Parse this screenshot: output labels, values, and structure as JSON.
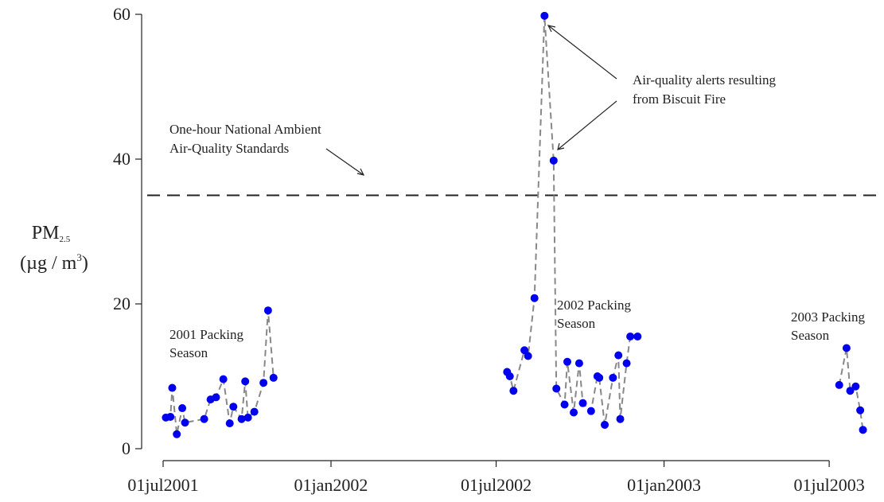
{
  "chart_data": {
    "type": "line",
    "ylabel": "PM2.5 (µg / m3)",
    "ylabel_parts": {
      "base": "PM",
      "subscript": "2.5",
      "unit_open": "(µg / m",
      "superscript": "3",
      "unit_close": ")"
    },
    "ylim": [
      0,
      60
    ],
    "yticks": [
      0,
      20,
      40,
      60
    ],
    "xlim": [
      "2001-06-01",
      "2003-08-15"
    ],
    "xticks": [
      {
        "date": "2001-07-01",
        "label": "01jul2001"
      },
      {
        "date": "2002-01-01",
        "label": "01jan2002"
      },
      {
        "date": "2002-07-01",
        "label": "01jul2002"
      },
      {
        "date": "2003-01-01",
        "label": "01jan2003"
      },
      {
        "date": "2003-07-01",
        "label": "01jul2003"
      }
    ],
    "grid": false,
    "marker_color": "#0000ee",
    "line_color": "#888888",
    "reference_line": {
      "y": 35,
      "color": "#222222",
      "style": "dashed"
    },
    "series": [
      {
        "segment": "2001",
        "points": [
          {
            "x": "2001-07-04",
            "y": 4.3
          },
          {
            "x": "2001-07-09",
            "y": 4.4
          },
          {
            "x": "2001-07-11",
            "y": 8.4
          },
          {
            "x": "2001-07-16",
            "y": 2.0
          },
          {
            "x": "2001-07-22",
            "y": 5.6
          },
          {
            "x": "2001-07-25",
            "y": 3.6
          },
          {
            "x": "2001-08-15",
            "y": 4.1
          },
          {
            "x": "2001-08-22",
            "y": 6.8
          },
          {
            "x": "2001-08-28",
            "y": 7.1
          },
          {
            "x": "2001-09-05",
            "y": 9.6
          },
          {
            "x": "2001-09-12",
            "y": 3.5
          },
          {
            "x": "2001-09-16",
            "y": 5.8
          },
          {
            "x": "2001-09-25",
            "y": 4.1
          },
          {
            "x": "2001-09-29",
            "y": 9.3
          },
          {
            "x": "2001-10-02",
            "y": 4.3
          },
          {
            "x": "2001-10-09",
            "y": 5.1
          },
          {
            "x": "2001-10-19",
            "y": 9.1
          },
          {
            "x": "2001-10-24",
            "y": 19.1
          },
          {
            "x": "2001-10-30",
            "y": 9.8
          }
        ]
      },
      {
        "segment": "2002",
        "points": [
          {
            "x": "2002-07-13",
            "y": 10.6
          },
          {
            "x": "2002-07-16",
            "y": 10.0
          },
          {
            "x": "2002-07-20",
            "y": 8.0
          },
          {
            "x": "2002-08-01",
            "y": 13.6
          },
          {
            "x": "2002-08-05",
            "y": 12.8
          },
          {
            "x": "2002-08-12",
            "y": 20.8
          },
          {
            "x": "2002-08-23",
            "y": 59.8
          },
          {
            "x": "2002-09-02",
            "y": 39.8
          },
          {
            "x": "2002-09-05",
            "y": 8.3
          },
          {
            "x": "2002-09-14",
            "y": 6.1
          },
          {
            "x": "2002-09-17",
            "y": 12.0
          },
          {
            "x": "2002-09-24",
            "y": 5.0
          },
          {
            "x": "2002-09-30",
            "y": 11.8
          },
          {
            "x": "2002-10-04",
            "y": 6.3
          },
          {
            "x": "2002-10-13",
            "y": 5.2
          },
          {
            "x": "2002-10-20",
            "y": 10.0
          },
          {
            "x": "2002-10-22",
            "y": 9.8
          },
          {
            "x": "2002-10-28",
            "y": 3.3
          },
          {
            "x": "2002-11-06",
            "y": 9.8
          },
          {
            "x": "2002-11-12",
            "y": 12.9
          },
          {
            "x": "2002-11-14",
            "y": 4.1
          },
          {
            "x": "2002-11-21",
            "y": 11.8
          },
          {
            "x": "2002-11-25",
            "y": 15.5
          },
          {
            "x": "2002-12-03",
            "y": 15.5
          }
        ]
      },
      {
        "segment": "2003",
        "points": [
          {
            "x": "2003-07-12",
            "y": 8.8
          },
          {
            "x": "2003-07-20",
            "y": 13.9
          },
          {
            "x": "2003-07-24",
            "y": 8.0
          },
          {
            "x": "2003-07-30",
            "y": 8.6
          },
          {
            "x": "2003-08-04",
            "y": 5.3
          },
          {
            "x": "2003-08-07",
            "y": 2.6
          }
        ]
      }
    ],
    "annotations": [
      {
        "id": "alerts",
        "text_lines": [
          "Air-quality alerts resulting",
          "from Biscuit Fire"
        ]
      },
      {
        "id": "naaqs",
        "text_lines": [
          "One-hour National Ambient",
          "Air-Quality Standards"
        ]
      },
      {
        "id": "season2001",
        "text_lines": [
          "2001 Packing",
          "Season"
        ]
      },
      {
        "id": "season2002",
        "text_lines": [
          "2002 Packing",
          "Season"
        ]
      },
      {
        "id": "season2003",
        "text_lines": [
          "2003 Packing",
          "Season"
        ]
      }
    ]
  }
}
